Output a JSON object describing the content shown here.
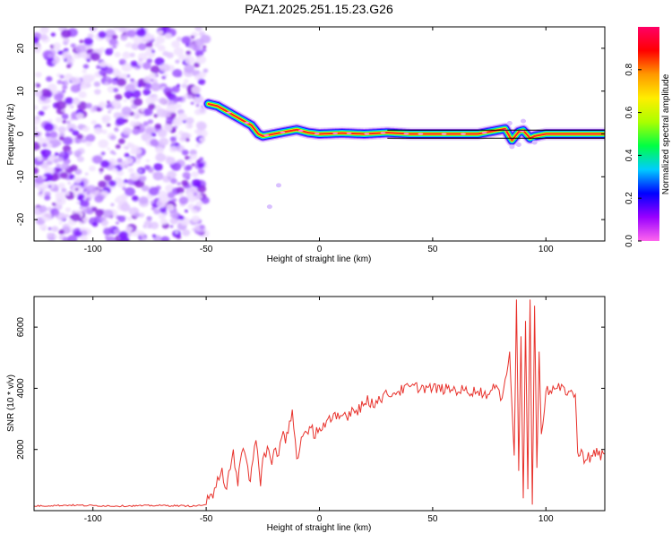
{
  "title": "PAZ1.2025.251.15.23.G26",
  "chart_data": [
    {
      "type": "heatmap",
      "xlabel": "Height of straight line (km)",
      "ylabel": "Frequency (Hz)",
      "xlim": [
        -126,
        126
      ],
      "ylim": [
        -25,
        25
      ],
      "xticks": [
        -100,
        -50,
        0,
        50,
        100
      ],
      "yticks": [
        -20,
        -10,
        0,
        10,
        20
      ],
      "noise_region_x": [
        -126,
        -50
      ],
      "colorbar": {
        "label": "Normalized spectral amplitude",
        "range": [
          0,
          1
        ],
        "ticks": [
          "0.0",
          "0.2",
          "0.4",
          "0.6",
          "0.8"
        ],
        "colors": [
          "#ff66ee",
          "#9900ff",
          "#0000ff",
          "#00ccff",
          "#00ff44",
          "#aaff00",
          "#ffee00",
          "#ff9900",
          "#ff0000",
          "#ff0066"
        ]
      },
      "ridge": {
        "x": [
          -49,
          -45,
          -40,
          -35,
          -30,
          -27,
          -25,
          -20,
          -15,
          -10,
          -5,
          0,
          10,
          20,
          30,
          40,
          50,
          60,
          70,
          78,
          82,
          85,
          88,
          90,
          93,
          95,
          100,
          110,
          126
        ],
        "y": [
          7,
          6.5,
          5,
          3.5,
          2,
          0,
          -0.5,
          0,
          0.5,
          1,
          0.3,
          0,
          0.2,
          0,
          0.3,
          0,
          0,
          0,
          0,
          0.8,
          1.2,
          -1.5,
          0.5,
          0.8,
          -1,
          -0.5,
          0,
          0,
          0
        ]
      }
    },
    {
      "type": "line",
      "xlabel": "Height of straight line (km)",
      "ylabel": "SNR (10 * v/v)",
      "xlim": [
        -126,
        126
      ],
      "ylim": [
        0,
        7000
      ],
      "xticks": [
        -100,
        -50,
        0,
        50,
        100
      ],
      "yticks": [
        2000,
        4000,
        6000
      ],
      "color": "#e8312b",
      "series": [
        {
          "x": [
            -126,
            -110,
            -90,
            -70,
            -55,
            -50,
            -47,
            -45,
            -43,
            -41,
            -40,
            -38,
            -36,
            -35,
            -33,
            -31,
            -30,
            -28,
            -26,
            -25,
            -23,
            -21,
            -20,
            -18,
            -16,
            -15,
            -12,
            -10,
            -8,
            -5,
            0,
            5,
            10,
            15,
            20,
            25,
            30,
            35,
            40,
            50,
            60,
            70,
            75,
            78,
            80,
            82,
            84,
            85,
            86,
            87,
            88,
            89,
            90,
            91,
            92,
            93,
            94,
            95,
            96,
            97,
            98,
            100,
            105,
            110,
            113,
            114,
            115,
            120,
            126
          ],
          "y": [
            150,
            180,
            150,
            170,
            150,
            200,
            400,
            1100,
            1400,
            700,
            1300,
            2000,
            800,
            1600,
            1900,
            1000,
            1400,
            2300,
            800,
            1700,
            2100,
            1500,
            2000,
            1800,
            2600,
            2200,
            3300,
            1700,
            2400,
            2500,
            2700,
            2900,
            3100,
            3300,
            3500,
            3600,
            3800,
            3900,
            4050,
            4000,
            3950,
            3900,
            3800,
            4100,
            3600,
            4300,
            5200,
            3400,
            1800,
            6900,
            1300,
            5700,
            400,
            6200,
            700,
            6900,
            200,
            6700,
            1400,
            5200,
            2500,
            3900,
            4000,
            3900,
            3800,
            1900,
            1800,
            1800,
            1850
          ]
        }
      ]
    }
  ]
}
